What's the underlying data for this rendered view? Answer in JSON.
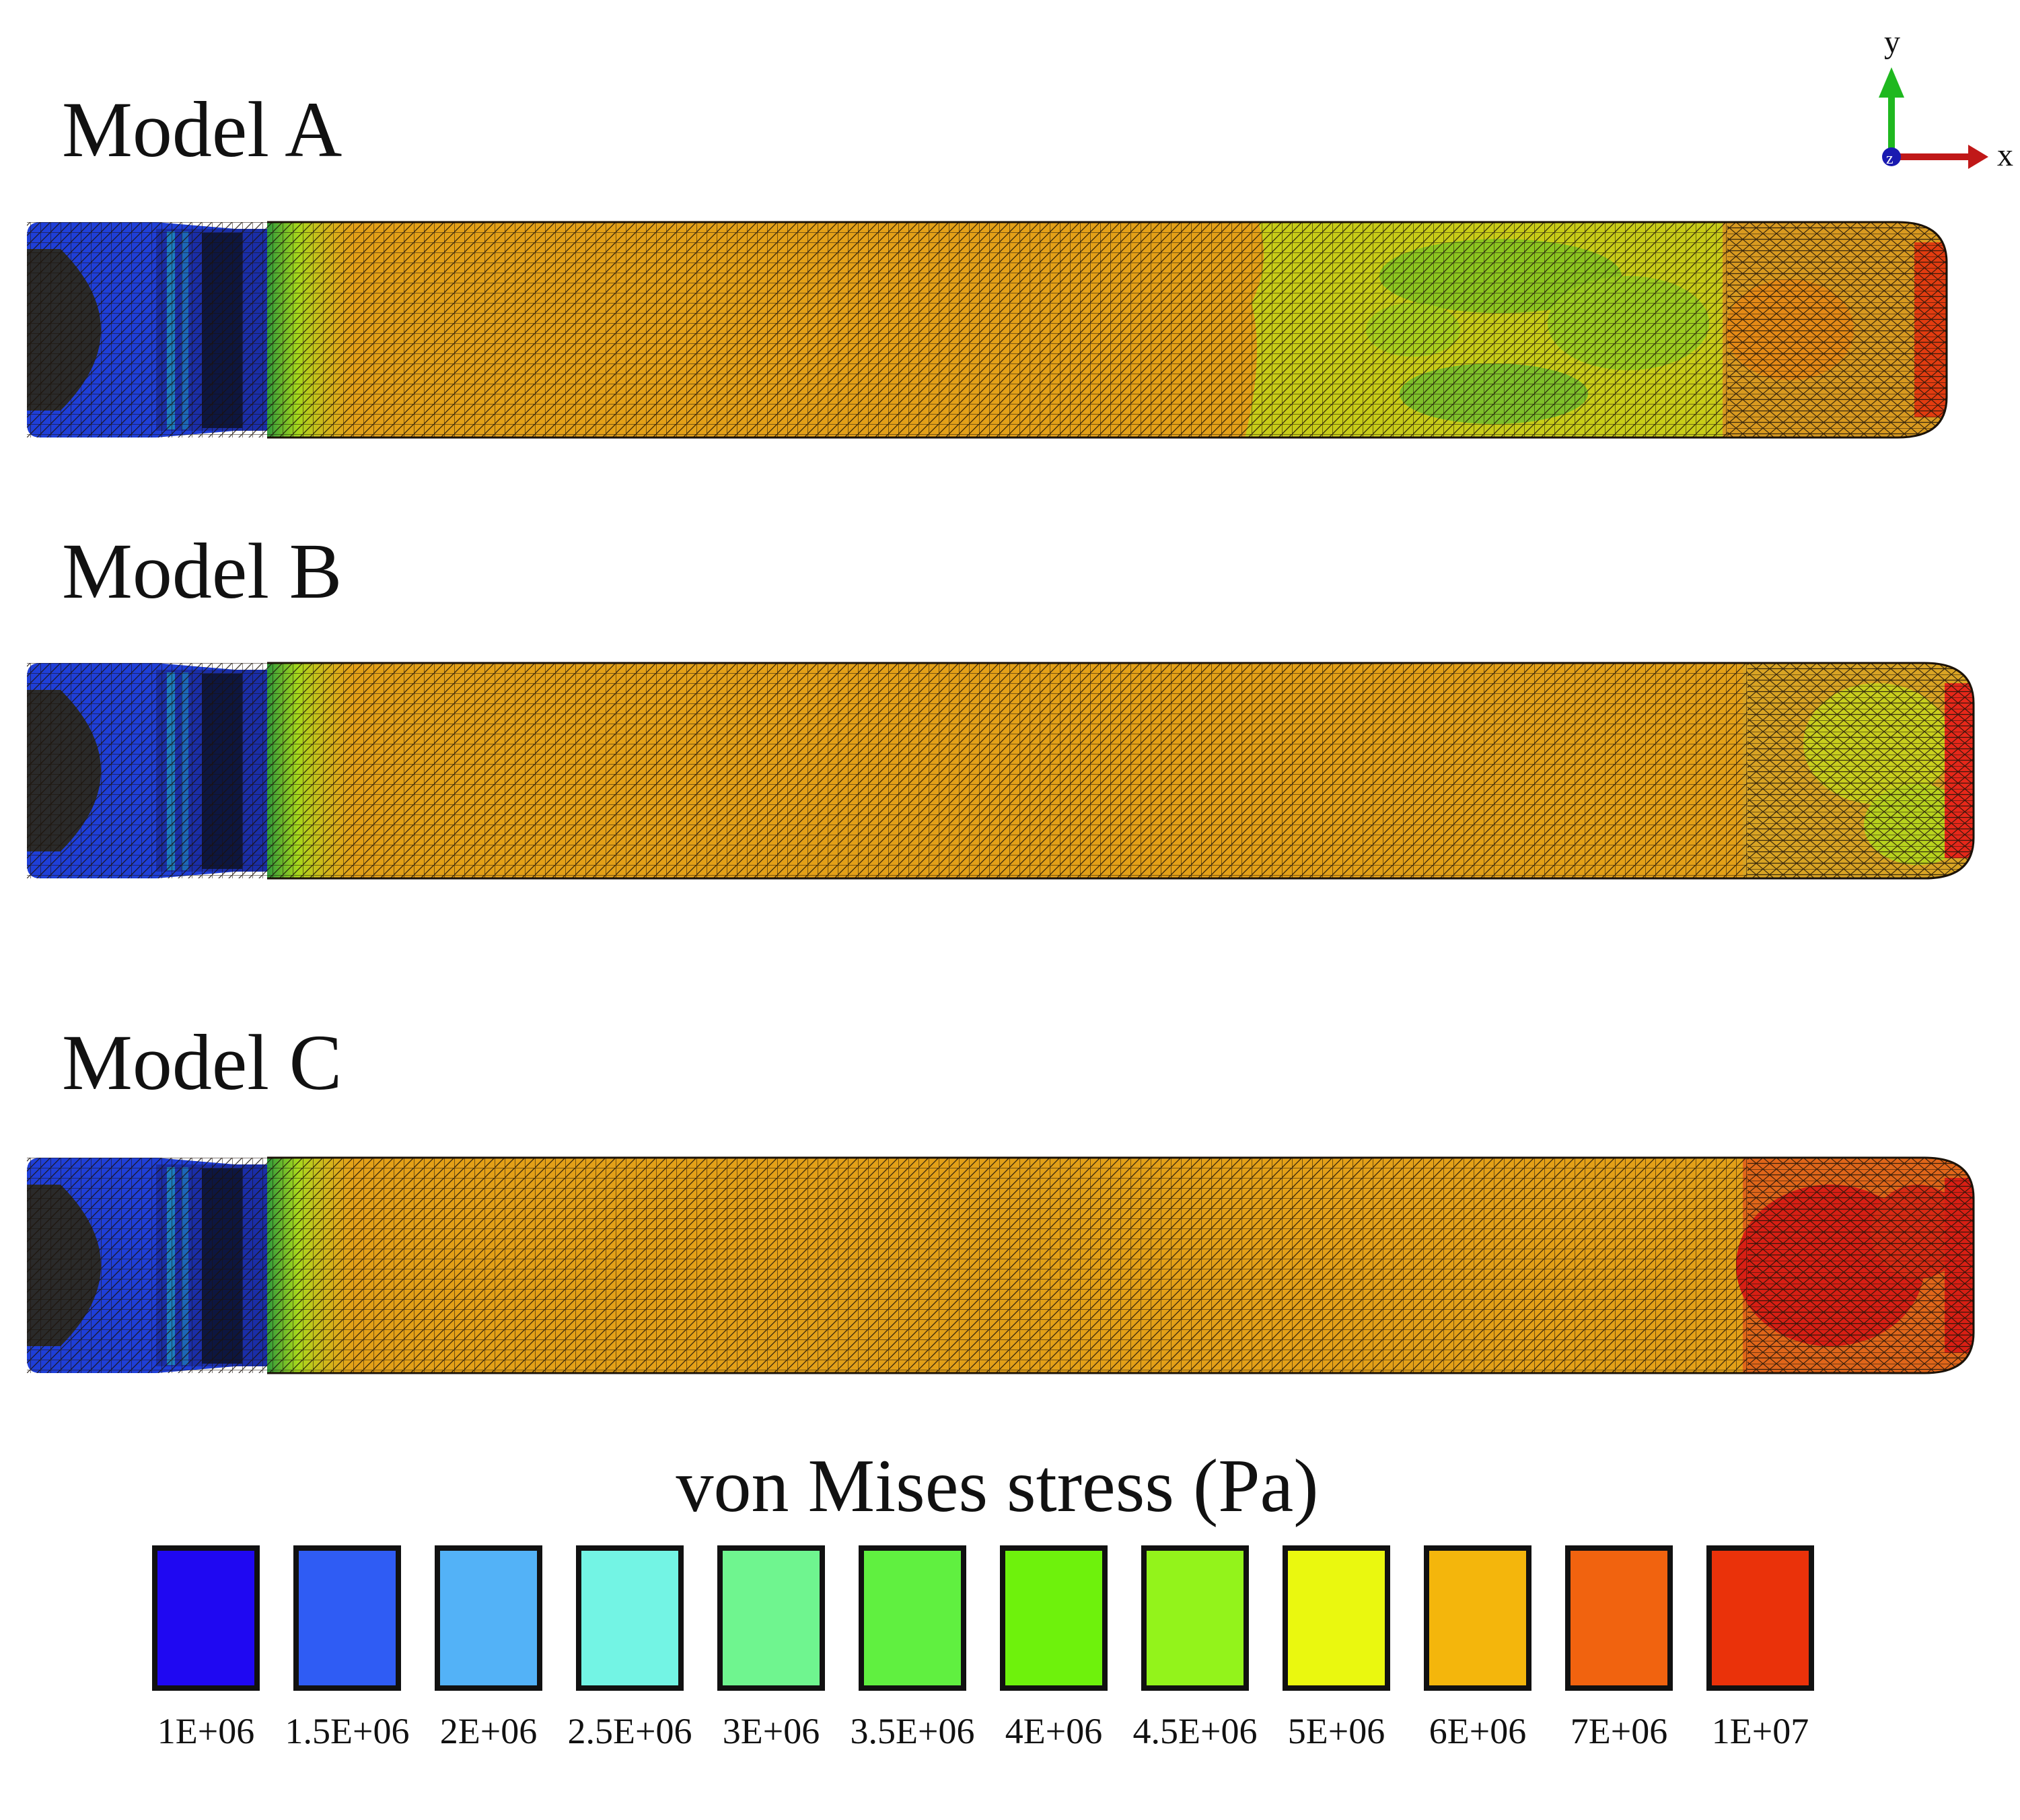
{
  "models": [
    {
      "label": "Model A",
      "hot_zone": "green-patchy",
      "tip_color": "#e23c10"
    },
    {
      "label": "Model B",
      "hot_zone": "orange-yellow",
      "tip_color": "#e6281a"
    },
    {
      "label": "Model C",
      "hot_zone": "red",
      "tip_color": "#d81f14"
    }
  ],
  "axes": {
    "y": "y",
    "x": "x",
    "z": "z"
  },
  "legend": {
    "title": "von Mises stress (Pa)",
    "entries": [
      {
        "value": "1E+06",
        "color": "#1f08f2"
      },
      {
        "value": "1.5E+06",
        "color": "#2f5cf4"
      },
      {
        "value": "2E+06",
        "color": "#53b2f7"
      },
      {
        "value": "2.5E+06",
        "color": "#73f4e4"
      },
      {
        "value": "3E+06",
        "color": "#6ff58f"
      },
      {
        "value": "3.5E+06",
        "color": "#60f040"
      },
      {
        "value": "4E+06",
        "color": "#6ef20c"
      },
      {
        "value": "4.5E+06",
        "color": "#93f31b"
      },
      {
        "value": "5E+06",
        "color": "#eaf80f"
      },
      {
        "value": "6E+06",
        "color": "#f4b60c"
      },
      {
        "value": "7E+06",
        "color": "#f1630f"
      },
      {
        "value": "1E+07",
        "color": "#ea320a"
      }
    ]
  },
  "colors": {
    "body_orange": "#e3a018",
    "root_blue": "#1f3fd8",
    "root_dark": "#2a2a2a",
    "transition_green": "#a6d81c",
    "mesh_line": "#1b1208"
  }
}
